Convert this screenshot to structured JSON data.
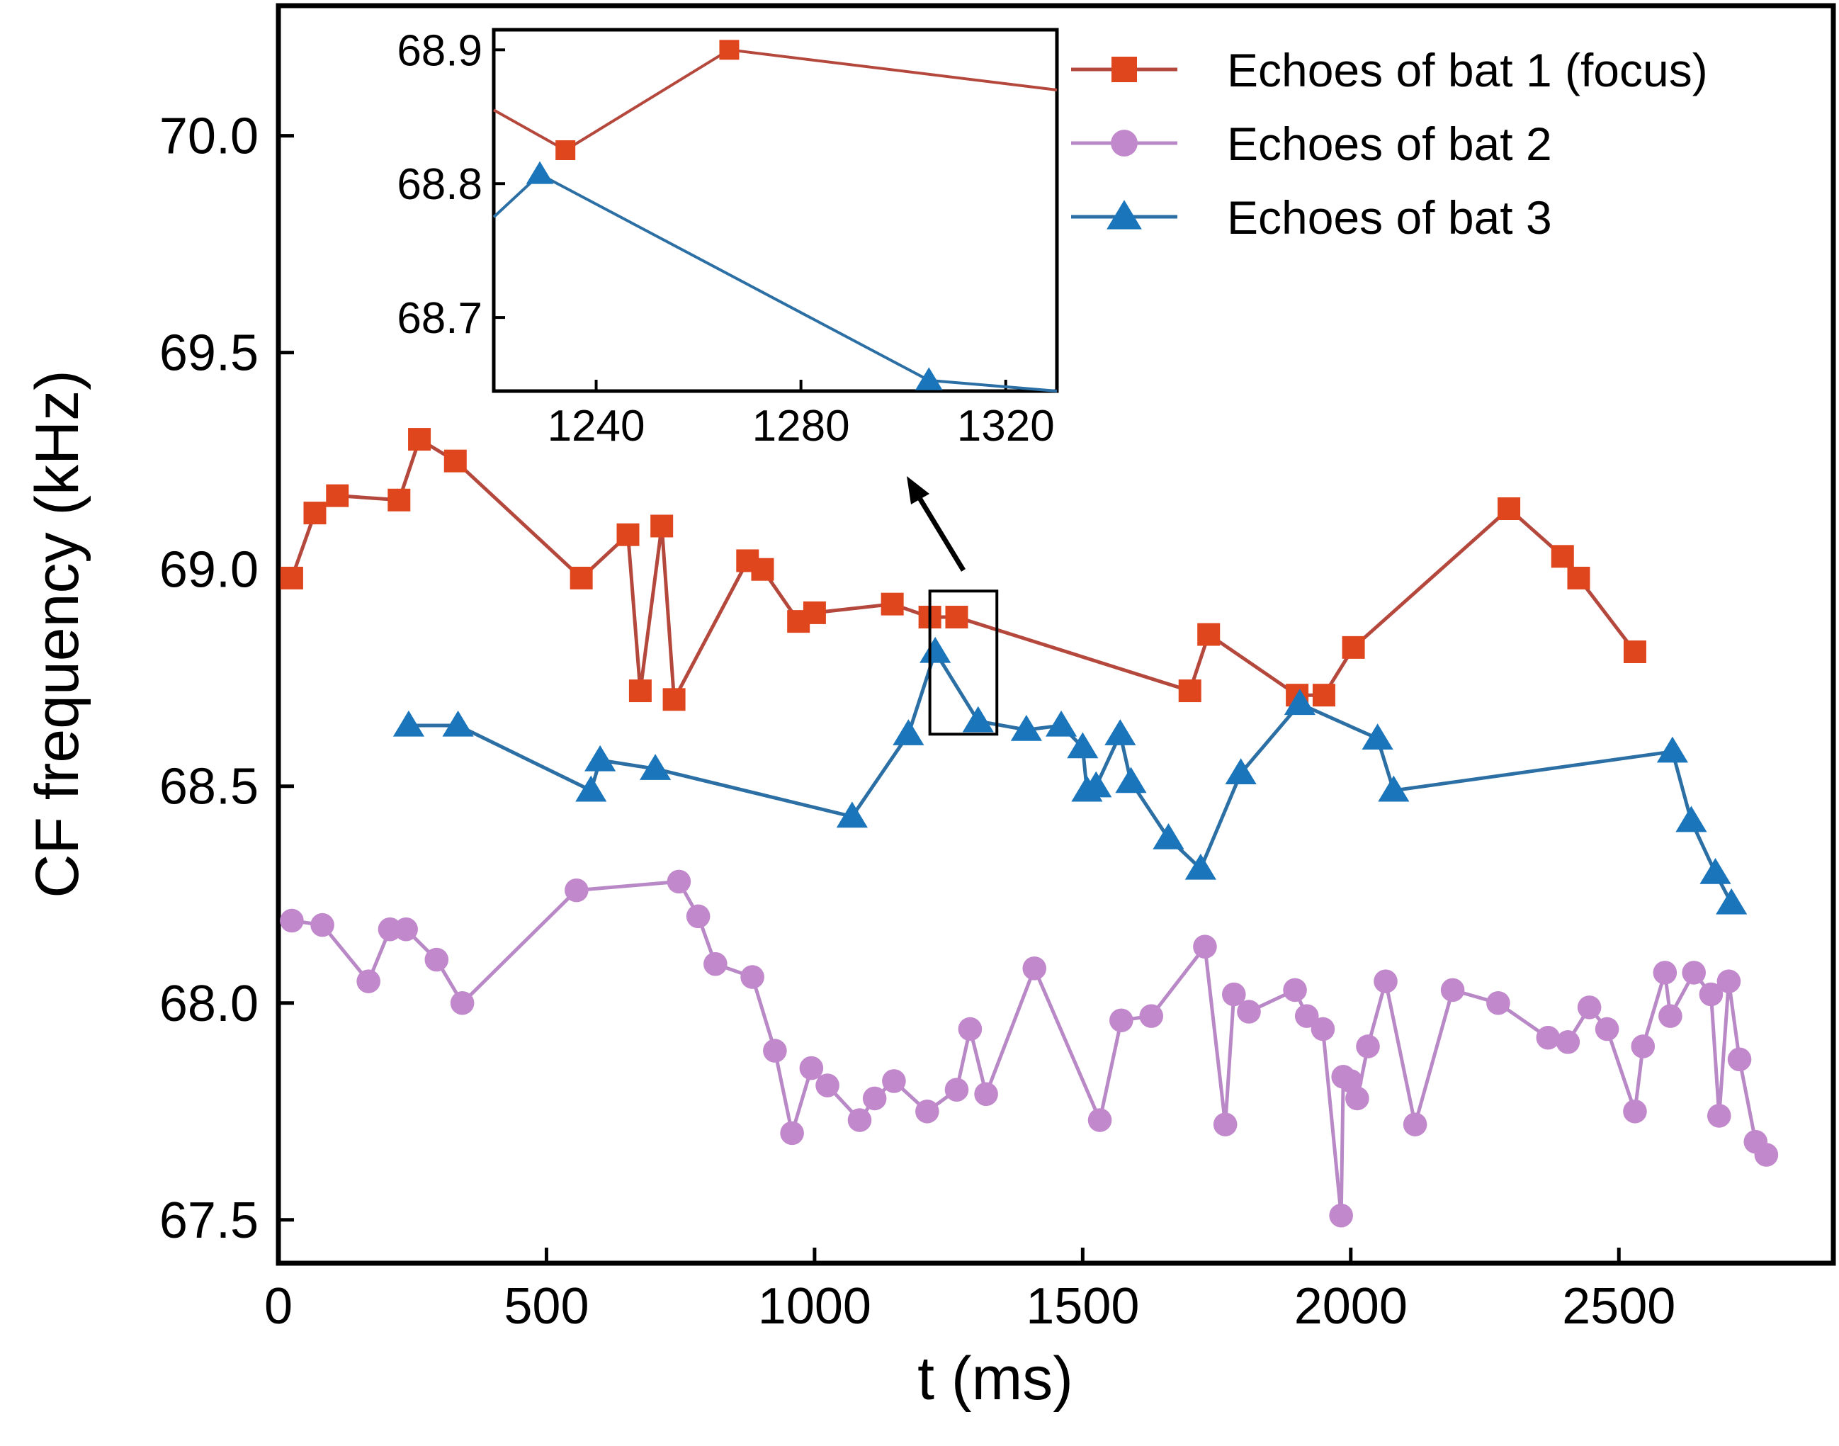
{
  "chart_data": {
    "type": "line",
    "xlabel": "t (ms)",
    "ylabel": "CF frequency (kHz)",
    "xlim": [
      0,
      2900
    ],
    "ylim": [
      67.4,
      70.3
    ],
    "xticks": [
      0,
      500,
      1000,
      1500,
      2000,
      2500
    ],
    "yticks": [
      67.5,
      68.0,
      68.5,
      69.0,
      69.5,
      70.0
    ],
    "xtick_labels": [
      "0",
      "500",
      "1000",
      "1500",
      "2000",
      "2500"
    ],
    "ytick_labels": [
      "67.5",
      "68.0",
      "68.5",
      "69.0",
      "69.5",
      "70.0"
    ],
    "grid": false,
    "legend_position": "top-right",
    "series": [
      {
        "name": "Echoes of bat 1 (focus)",
        "color": "#e0461e",
        "line_color": "#b5483c",
        "marker": "square",
        "x": [
          25,
          68,
          110,
          225,
          263,
          330,
          565,
          652,
          675,
          715,
          738,
          875,
          903,
          970,
          1000,
          1145,
          1215,
          1265,
          1700,
          1735,
          1900,
          1950,
          2005,
          2295,
          2395,
          2425,
          2530
        ],
        "y": [
          68.98,
          69.13,
          69.17,
          69.16,
          69.3,
          69.25,
          68.98,
          69.08,
          68.72,
          69.1,
          68.7,
          69.02,
          69.0,
          68.88,
          68.9,
          68.92,
          68.89,
          68.89,
          68.72,
          68.85,
          68.71,
          68.71,
          68.82,
          69.14,
          69.03,
          68.98,
          68.81
        ]
      },
      {
        "name": "Echoes of bat 2",
        "color": "#c189cc",
        "line_color": "#b889c6",
        "marker": "circle",
        "x": [
          25,
          82,
          168,
          208,
          238,
          295,
          343,
          556,
          747,
          783,
          815,
          884,
          926,
          958,
          994,
          1024,
          1084,
          1112,
          1148,
          1210,
          1265,
          1290,
          1320,
          1410,
          1532,
          1572,
          1628,
          1728,
          1766,
          1782,
          1810,
          1896,
          1918,
          1948,
          1982,
          1986,
          2000,
          2012,
          2032,
          2065,
          2120,
          2190,
          2275,
          2368,
          2405,
          2445,
          2478,
          2530,
          2545,
          2586,
          2596,
          2640,
          2672,
          2687,
          2705,
          2725,
          2755,
          2775
        ],
        "y": [
          68.19,
          68.18,
          68.05,
          68.17,
          68.17,
          68.1,
          68.0,
          68.26,
          68.28,
          68.2,
          68.09,
          68.06,
          67.89,
          67.7,
          67.85,
          67.81,
          67.73,
          67.78,
          67.82,
          67.75,
          67.8,
          67.94,
          67.79,
          68.08,
          67.73,
          67.96,
          67.97,
          68.13,
          67.72,
          68.02,
          67.98,
          68.03,
          67.97,
          67.94,
          67.51,
          67.83,
          67.82,
          67.78,
          67.9,
          68.05,
          67.72,
          68.03,
          68.0,
          67.92,
          67.91,
          67.99,
          67.94,
          67.75,
          67.9,
          68.07,
          67.97,
          68.07,
          68.02,
          67.74,
          68.05,
          67.87,
          67.68,
          67.65
        ]
      },
      {
        "name": "Echoes of bat 3",
        "color": "#1a75bb",
        "line_color": "#2c6fa4",
        "marker": "triangle",
        "x": [
          243,
          335,
          583,
          600,
          703,
          1070,
          1175,
          1225,
          1305,
          1395,
          1460,
          1500,
          1508,
          1525,
          1570,
          1590,
          1660,
          1720,
          1795,
          1905,
          2050,
          2080,
          2600,
          2635,
          2680,
          2710
        ],
        "y": [
          68.64,
          68.64,
          68.49,
          68.56,
          68.54,
          68.43,
          68.62,
          68.81,
          68.65,
          68.63,
          68.64,
          68.59,
          68.49,
          68.5,
          68.62,
          68.51,
          68.38,
          68.31,
          68.53,
          68.69,
          68.61,
          68.49,
          68.58,
          68.42,
          68.3,
          68.23
        ]
      }
    ],
    "inset": {
      "xlim": [
        1220,
        1330
      ],
      "ylim": [
        68.645,
        68.915
      ],
      "xticks": [
        1240,
        1280,
        1320
      ],
      "yticks": [
        68.7,
        68.8,
        68.9
      ],
      "xtick_labels": [
        "1240",
        "1280",
        "1320"
      ],
      "ytick_labels": [
        "68.7",
        "68.8",
        "68.9"
      ],
      "zoom_box": {
        "x": [
          1215,
          1340
        ],
        "y": [
          68.62,
          68.95
        ]
      },
      "series": [
        {
          "name": "Echoes of bat 1 (focus)",
          "x": [
            1220,
            1234,
            1266,
            1330
          ],
          "y": [
            68.855,
            68.825,
            68.9,
            68.87
          ]
        },
        {
          "name": "Echoes of bat 3",
          "x": [
            1220,
            1229,
            1305,
            1330
          ],
          "y": [
            68.775,
            68.807,
            68.653,
            68.645
          ]
        }
      ]
    }
  }
}
